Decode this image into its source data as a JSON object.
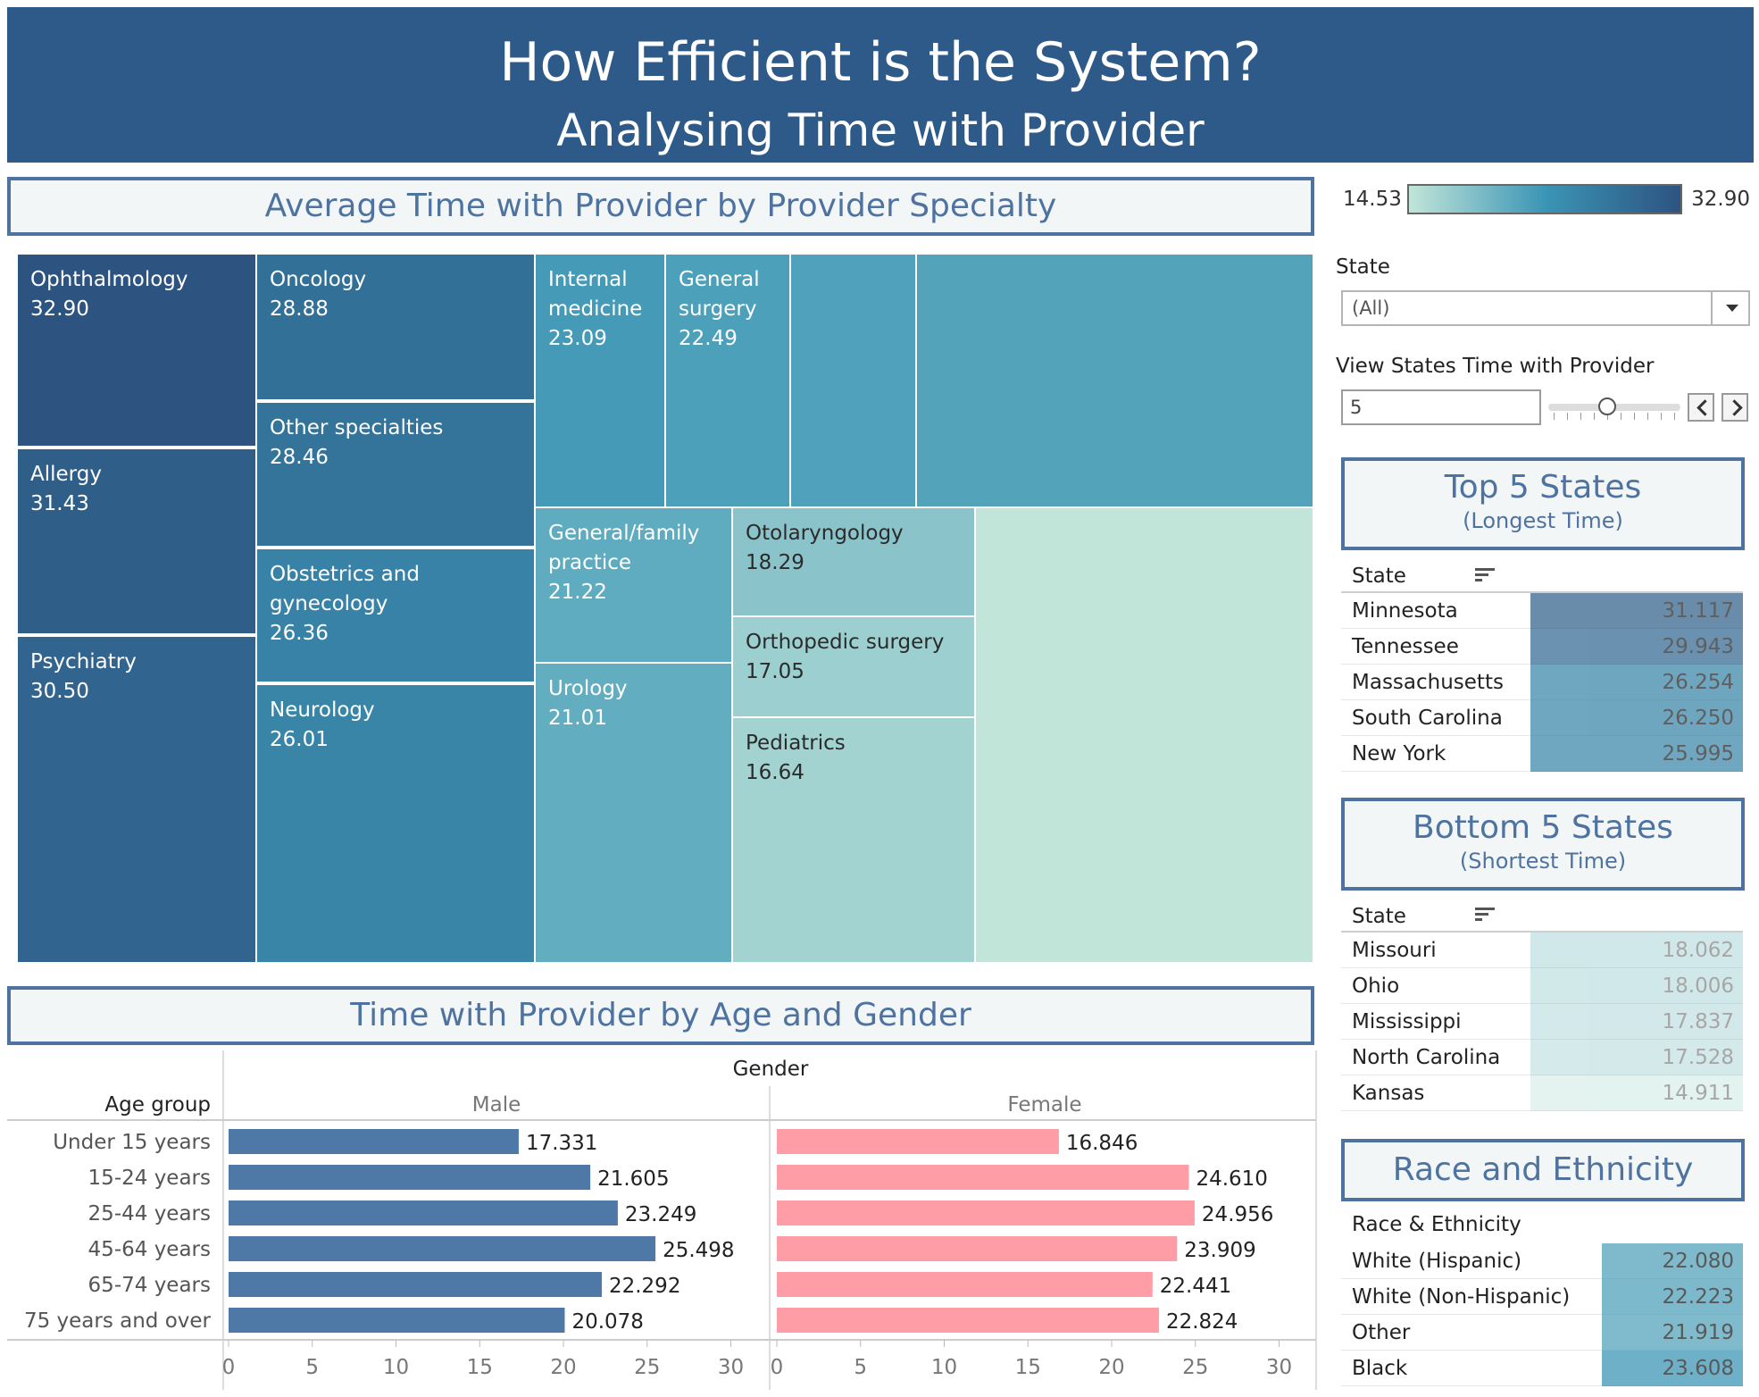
{
  "header": {
    "title": "How Efficient is the System?",
    "subtitle": "Analysing Time with Provider"
  },
  "treemap_title": "Average Time with Provider by Provider Specialty",
  "color_legend": {
    "min": "14.53",
    "max": "32.90",
    "colors": [
      "#c1e5d9",
      "#3b95b5",
      "#2d5381"
    ]
  },
  "filters": {
    "state_label": "State",
    "state_value": "(All)",
    "view_label": "View States Time with Provider",
    "view_value": "5",
    "view_level": 5,
    "view_min": 1,
    "view_max": 10
  },
  "top_states": {
    "title": "Top 5 States",
    "subtitle": "(Longest Time)",
    "column": "State",
    "rows": [
      {
        "state": "Minnesota",
        "value": "31.117"
      },
      {
        "state": "Tennessee",
        "value": "29.943"
      },
      {
        "state": "Massachusetts",
        "value": "26.254"
      },
      {
        "state": "South Carolina",
        "value": "26.250"
      },
      {
        "state": "New York",
        "value": "25.995"
      }
    ]
  },
  "bottom_states": {
    "title": "Bottom 5 States",
    "subtitle": "(Shortest Time)",
    "column": "State",
    "rows": [
      {
        "state": "Missouri",
        "value": "18.062"
      },
      {
        "state": "Ohio",
        "value": "18.006"
      },
      {
        "state": "Mississippi",
        "value": "17.837"
      },
      {
        "state": "North Carolina",
        "value": "17.528"
      },
      {
        "state": "Kansas",
        "value": "14.911"
      }
    ]
  },
  "race": {
    "title": "Race and Ethnicity",
    "column": "Race & Ethnicity",
    "rows": [
      {
        "group": "White (Hispanic)",
        "value": "22.080"
      },
      {
        "group": "White (Non-Hispanic)",
        "value": "22.223"
      },
      {
        "group": "Other",
        "value": "21.919"
      },
      {
        "group": "Black",
        "value": "23.608"
      }
    ]
  },
  "bar_title": "Time with Provider by Age and Gender",
  "chart_data": [
    {
      "type": "treemap",
      "title": "Average Time with Provider by Provider Specialty",
      "color_range": [
        14.53,
        32.9
      ],
      "items": [
        {
          "label": "Ophthalmology",
          "value": 32.9,
          "display": "32.90"
        },
        {
          "label": "Allergy",
          "value": 31.43,
          "display": "31.43"
        },
        {
          "label": "Psychiatry",
          "value": 30.5,
          "display": "30.50"
        },
        {
          "label": "Oncology",
          "value": 28.88,
          "display": "28.88"
        },
        {
          "label": "Other specialties",
          "value": 28.46,
          "display": "28.46"
        },
        {
          "label": "Obstetrics and gynecology",
          "value": 26.36,
          "display": "26.36"
        },
        {
          "label": "Neurology",
          "value": 26.01,
          "display": "26.01"
        },
        {
          "label": "Internal medicine",
          "value": 23.09,
          "display": "23.09"
        },
        {
          "label": "General surgery",
          "value": 22.49,
          "display": "22.49"
        },
        {
          "label": "",
          "value": 22.3,
          "display": ""
        },
        {
          "label": "",
          "value": 22.1,
          "display": ""
        },
        {
          "label": "General/family practice",
          "value": 21.22,
          "display": "21.22"
        },
        {
          "label": "Urology",
          "value": 21.01,
          "display": "21.01"
        },
        {
          "label": "Otolaryngology",
          "value": 18.29,
          "display": "18.29"
        },
        {
          "label": "Orthopedic surgery",
          "value": 17.05,
          "display": "17.05"
        },
        {
          "label": "Pediatrics",
          "value": 16.64,
          "display": "16.64"
        },
        {
          "label": "",
          "value": 14.53,
          "display": ""
        }
      ]
    },
    {
      "type": "bar",
      "title": "Time with Provider by Age and Gender",
      "column_header": "Gender",
      "row_header": "Age group",
      "categories": [
        "Under 15 years",
        "15-24 years",
        "25-44 years",
        "45-64 years",
        "65-74 years",
        "75 years and over"
      ],
      "series": [
        {
          "name": "Male",
          "color": "#4e79a7",
          "values": [
            17.331,
            21.605,
            23.249,
            25.498,
            22.292,
            20.078
          ],
          "labels": [
            "17.331",
            "21.605",
            "23.249",
            "25.498",
            "22.292",
            "20.078"
          ]
        },
        {
          "name": "Female",
          "color": "#ff9da7",
          "values": [
            16.846,
            24.61,
            24.956,
            23.909,
            22.441,
            22.824
          ],
          "labels": [
            "16.846",
            "24.610",
            "24.956",
            "23.909",
            "22.441",
            "22.824"
          ]
        }
      ],
      "xlim": [
        0,
        32
      ],
      "ticks": [
        0,
        5,
        10,
        15,
        20,
        25,
        30
      ],
      "tick_labels": [
        "0",
        "5",
        "10",
        "15",
        "20",
        "25",
        "30"
      ]
    }
  ]
}
